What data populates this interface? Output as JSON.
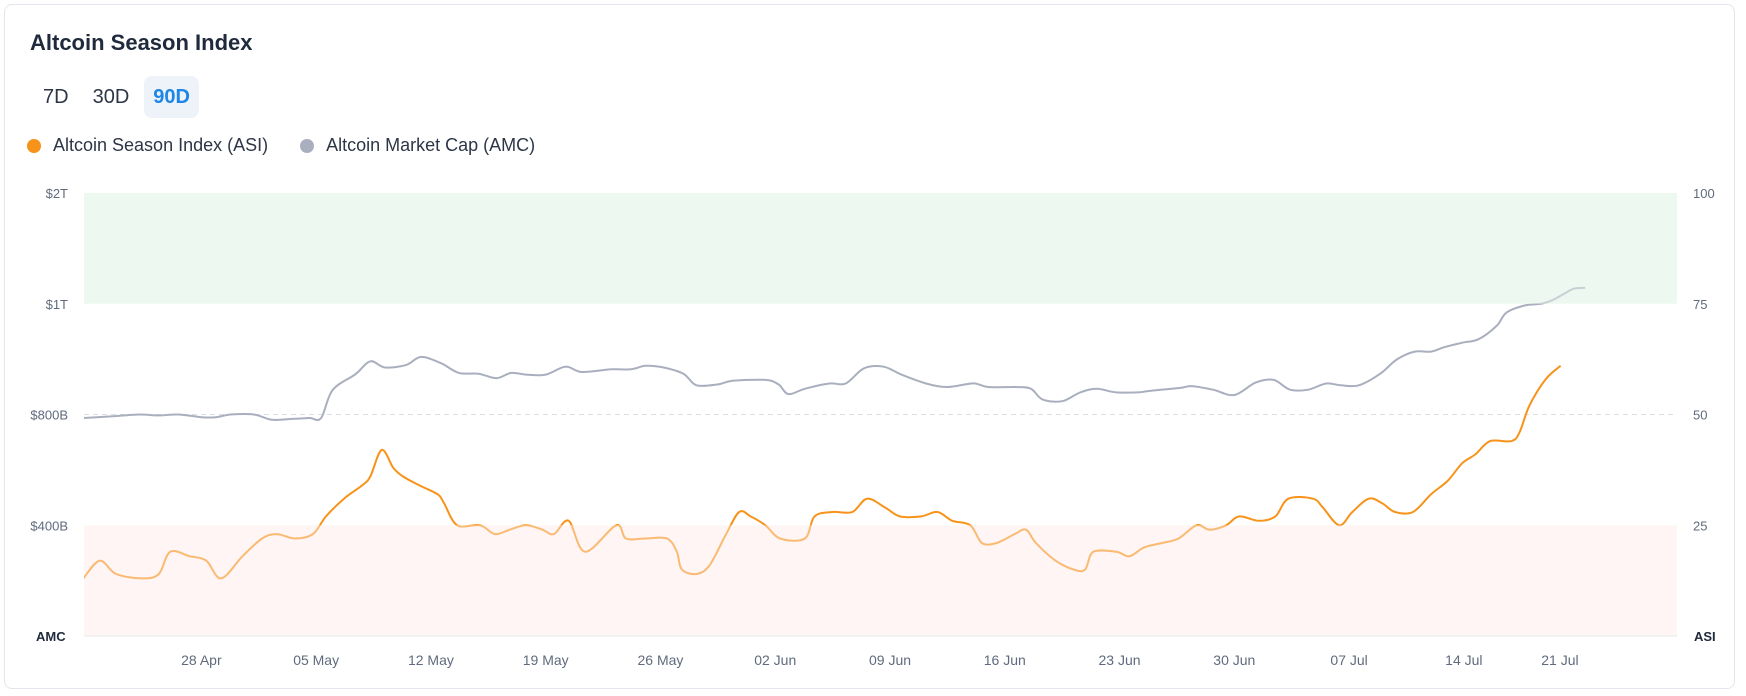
{
  "card": {
    "title": "Altcoin Season Index"
  },
  "tabs": [
    {
      "label": "7D",
      "active": false
    },
    {
      "label": "30D",
      "active": false
    },
    {
      "label": "90D",
      "active": true
    }
  ],
  "colors": {
    "asi": "#f7931a",
    "amc": "#a9afbe",
    "altseason_zone": "#e3f4ea",
    "bitcoin_zone": "#fdeceb",
    "accent": "#1d86e6"
  },
  "legend": [
    {
      "label": "Altcoin Season Index (ASI)",
      "color": "#f7931a"
    },
    {
      "label": "Altcoin Market Cap (AMC)",
      "color": "#a9afbe"
    }
  ],
  "chart_data": {
    "type": "line",
    "left_axis": {
      "title": "AMC",
      "ticks": [
        "$2T",
        "$1T",
        "$800B",
        "$400B"
      ]
    },
    "right_axis": {
      "title": "ASI",
      "ticks": [
        "100",
        "75",
        "50",
        "25"
      ],
      "ylim": [
        0,
        100
      ]
    },
    "x_ticks": [
      "28 Apr",
      "05 May",
      "12 May",
      "19 May",
      "26 May",
      "02 Jun",
      "09 Jun",
      "16 Jun",
      "23 Jun",
      "30 Jun",
      "07 Jul",
      "14 Jul",
      "21 Jul"
    ],
    "x_range_days": [
      -7.16,
      90
    ],
    "zones": [
      {
        "name": "altcoin-season",
        "from": 75,
        "to": 100
      },
      {
        "name": "bitcoin-season",
        "from": 0,
        "to": 25
      }
    ],
    "series": [
      {
        "name": "Altcoin Season Index (ASI)",
        "axis": "right",
        "points": [
          [
            -7.2,
            13
          ],
          [
            -6.2,
            17
          ],
          [
            -5.2,
            14
          ],
          [
            -3.6,
            13
          ],
          [
            -2.6,
            14
          ],
          [
            -1.9,
            19
          ],
          [
            -0.7,
            18
          ],
          [
            0.3,
            17
          ],
          [
            1.2,
            13
          ],
          [
            2.5,
            18
          ],
          [
            3.7,
            22
          ],
          [
            4.6,
            23
          ],
          [
            5.7,
            22
          ],
          [
            6.8,
            23
          ],
          [
            7.6,
            27
          ],
          [
            8.7,
            31
          ],
          [
            9.8,
            34
          ],
          [
            10.3,
            36
          ],
          [
            11.0,
            42
          ],
          [
            11.7,
            38
          ],
          [
            12.3,
            36
          ],
          [
            13.3,
            34
          ],
          [
            14.4,
            32
          ],
          [
            14.8,
            30
          ],
          [
            15.6,
            25
          ],
          [
            17.0,
            25
          ],
          [
            17.9,
            23
          ],
          [
            18.8,
            24
          ],
          [
            19.8,
            25
          ],
          [
            20.8,
            24
          ],
          [
            21.5,
            23
          ],
          [
            22.4,
            26
          ],
          [
            23.4,
            19
          ],
          [
            25.3,
            25
          ],
          [
            25.9,
            22
          ],
          [
            27.1,
            22
          ],
          [
            28.4,
            22
          ],
          [
            29.0,
            19
          ],
          [
            29.3,
            15
          ],
          [
            30.2,
            14
          ],
          [
            31.0,
            16
          ],
          [
            32.0,
            23
          ],
          [
            32.8,
            28
          ],
          [
            33.5,
            27
          ],
          [
            34.4,
            25
          ],
          [
            35.3,
            22
          ],
          [
            36.8,
            22
          ],
          [
            37.4,
            27
          ],
          [
            38.5,
            28
          ],
          [
            39.7,
            28
          ],
          [
            40.6,
            31
          ],
          [
            41.7,
            29
          ],
          [
            42.6,
            27
          ],
          [
            43.9,
            27
          ],
          [
            44.9,
            28
          ],
          [
            45.8,
            26
          ],
          [
            46.9,
            25
          ],
          [
            47.6,
            21
          ],
          [
            48.5,
            21
          ],
          [
            49.6,
            23
          ],
          [
            50.3,
            24
          ],
          [
            50.9,
            21
          ],
          [
            52.1,
            17
          ],
          [
            53.2,
            15
          ],
          [
            53.9,
            15
          ],
          [
            54.4,
            19
          ],
          [
            55.8,
            19
          ],
          [
            56.6,
            18
          ],
          [
            57.5,
            20
          ],
          [
            58.6,
            21
          ],
          [
            59.6,
            22
          ],
          [
            60.7,
            25
          ],
          [
            61.5,
            24
          ],
          [
            62.5,
            25
          ],
          [
            63.3,
            27
          ],
          [
            64.5,
            26
          ],
          [
            65.5,
            27
          ],
          [
            66.3,
            31
          ],
          [
            67.8,
            31
          ],
          [
            68.4,
            29
          ],
          [
            69.4,
            25
          ],
          [
            70.2,
            28
          ],
          [
            71.2,
            31
          ],
          [
            72.0,
            30
          ],
          [
            72.8,
            28
          ],
          [
            73.9,
            28
          ],
          [
            75.0,
            32
          ],
          [
            76.0,
            35
          ],
          [
            76.9,
            39
          ],
          [
            77.7,
            41
          ],
          [
            78.6,
            44
          ],
          [
            79.9,
            44
          ],
          [
            80.4,
            46
          ],
          [
            81.0,
            52
          ],
          [
            82.0,
            58
          ],
          [
            82.9,
            61
          ]
        ]
      },
      {
        "name": "Altcoin Market Cap (AMC)",
        "axis": "left",
        "points": [
          [
            -7.2,
            49.2
          ],
          [
            -5.4,
            49.6
          ],
          [
            -3.8,
            50
          ],
          [
            -2.6,
            49.8
          ],
          [
            -1.4,
            50.0
          ],
          [
            0.0,
            49.4
          ],
          [
            0.9,
            49.4
          ],
          [
            1.8,
            50.0
          ],
          [
            3.2,
            50.0
          ],
          [
            4.3,
            48.8
          ],
          [
            5.5,
            49.0
          ],
          [
            6.6,
            49.2
          ],
          [
            7.3,
            49.2
          ],
          [
            8.0,
            55.5
          ],
          [
            9.4,
            59.1
          ],
          [
            10.3,
            62.0
          ],
          [
            11.2,
            60.6
          ],
          [
            12.5,
            61.2
          ],
          [
            13.4,
            63.0
          ],
          [
            14.6,
            61.6
          ],
          [
            15.7,
            59.4
          ],
          [
            16.9,
            59.2
          ],
          [
            18.0,
            58.2
          ],
          [
            18.9,
            59.4
          ],
          [
            19.8,
            59.0
          ],
          [
            21.0,
            59.0
          ],
          [
            22.2,
            60.8
          ],
          [
            23.2,
            59.6
          ],
          [
            25.0,
            60.2
          ],
          [
            26.2,
            60.2
          ],
          [
            27.1,
            61.0
          ],
          [
            28.2,
            60.6
          ],
          [
            29.4,
            59.2
          ],
          [
            30.2,
            56.6
          ],
          [
            31.5,
            56.8
          ],
          [
            32.4,
            57.6
          ],
          [
            34.4,
            57.8
          ],
          [
            35.2,
            56.8
          ],
          [
            35.8,
            54.6
          ],
          [
            36.8,
            55.8
          ],
          [
            38.3,
            57.0
          ],
          [
            39.3,
            57.0
          ],
          [
            40.4,
            60.4
          ],
          [
            41.6,
            60.8
          ],
          [
            42.7,
            59.0
          ],
          [
            44.2,
            57.0
          ],
          [
            45.4,
            56.2
          ],
          [
            46.6,
            56.8
          ],
          [
            47.2,
            57.0
          ],
          [
            48.0,
            56.2
          ],
          [
            49.7,
            56.2
          ],
          [
            50.6,
            55.8
          ],
          [
            51.3,
            53.4
          ],
          [
            52.5,
            53.0
          ],
          [
            53.6,
            55.0
          ],
          [
            54.6,
            55.8
          ],
          [
            55.8,
            55.0
          ],
          [
            57.1,
            55.0
          ],
          [
            58.0,
            55.4
          ],
          [
            59.7,
            56.0
          ],
          [
            60.4,
            56.4
          ],
          [
            61.7,
            55.6
          ],
          [
            63.0,
            54.4
          ],
          [
            64.3,
            57.2
          ],
          [
            65.4,
            57.8
          ],
          [
            66.4,
            55.6
          ],
          [
            67.5,
            55.6
          ],
          [
            68.6,
            57.0
          ],
          [
            69.5,
            56.6
          ],
          [
            70.6,
            56.6
          ],
          [
            71.9,
            59.2
          ],
          [
            72.9,
            62.4
          ],
          [
            74.0,
            64.2
          ],
          [
            75.0,
            64.2
          ],
          [
            75.8,
            65.2
          ],
          [
            76.9,
            66.2
          ],
          [
            77.9,
            67.0
          ],
          [
            79.0,
            70.0
          ],
          [
            79.6,
            73.0
          ],
          [
            80.7,
            74.6
          ],
          [
            81.7,
            75.0
          ],
          [
            82.4,
            75.8
          ],
          [
            83.0,
            77.0
          ],
          [
            83.7,
            78.4
          ],
          [
            84.4,
            78.6
          ]
        ]
      }
    ]
  }
}
